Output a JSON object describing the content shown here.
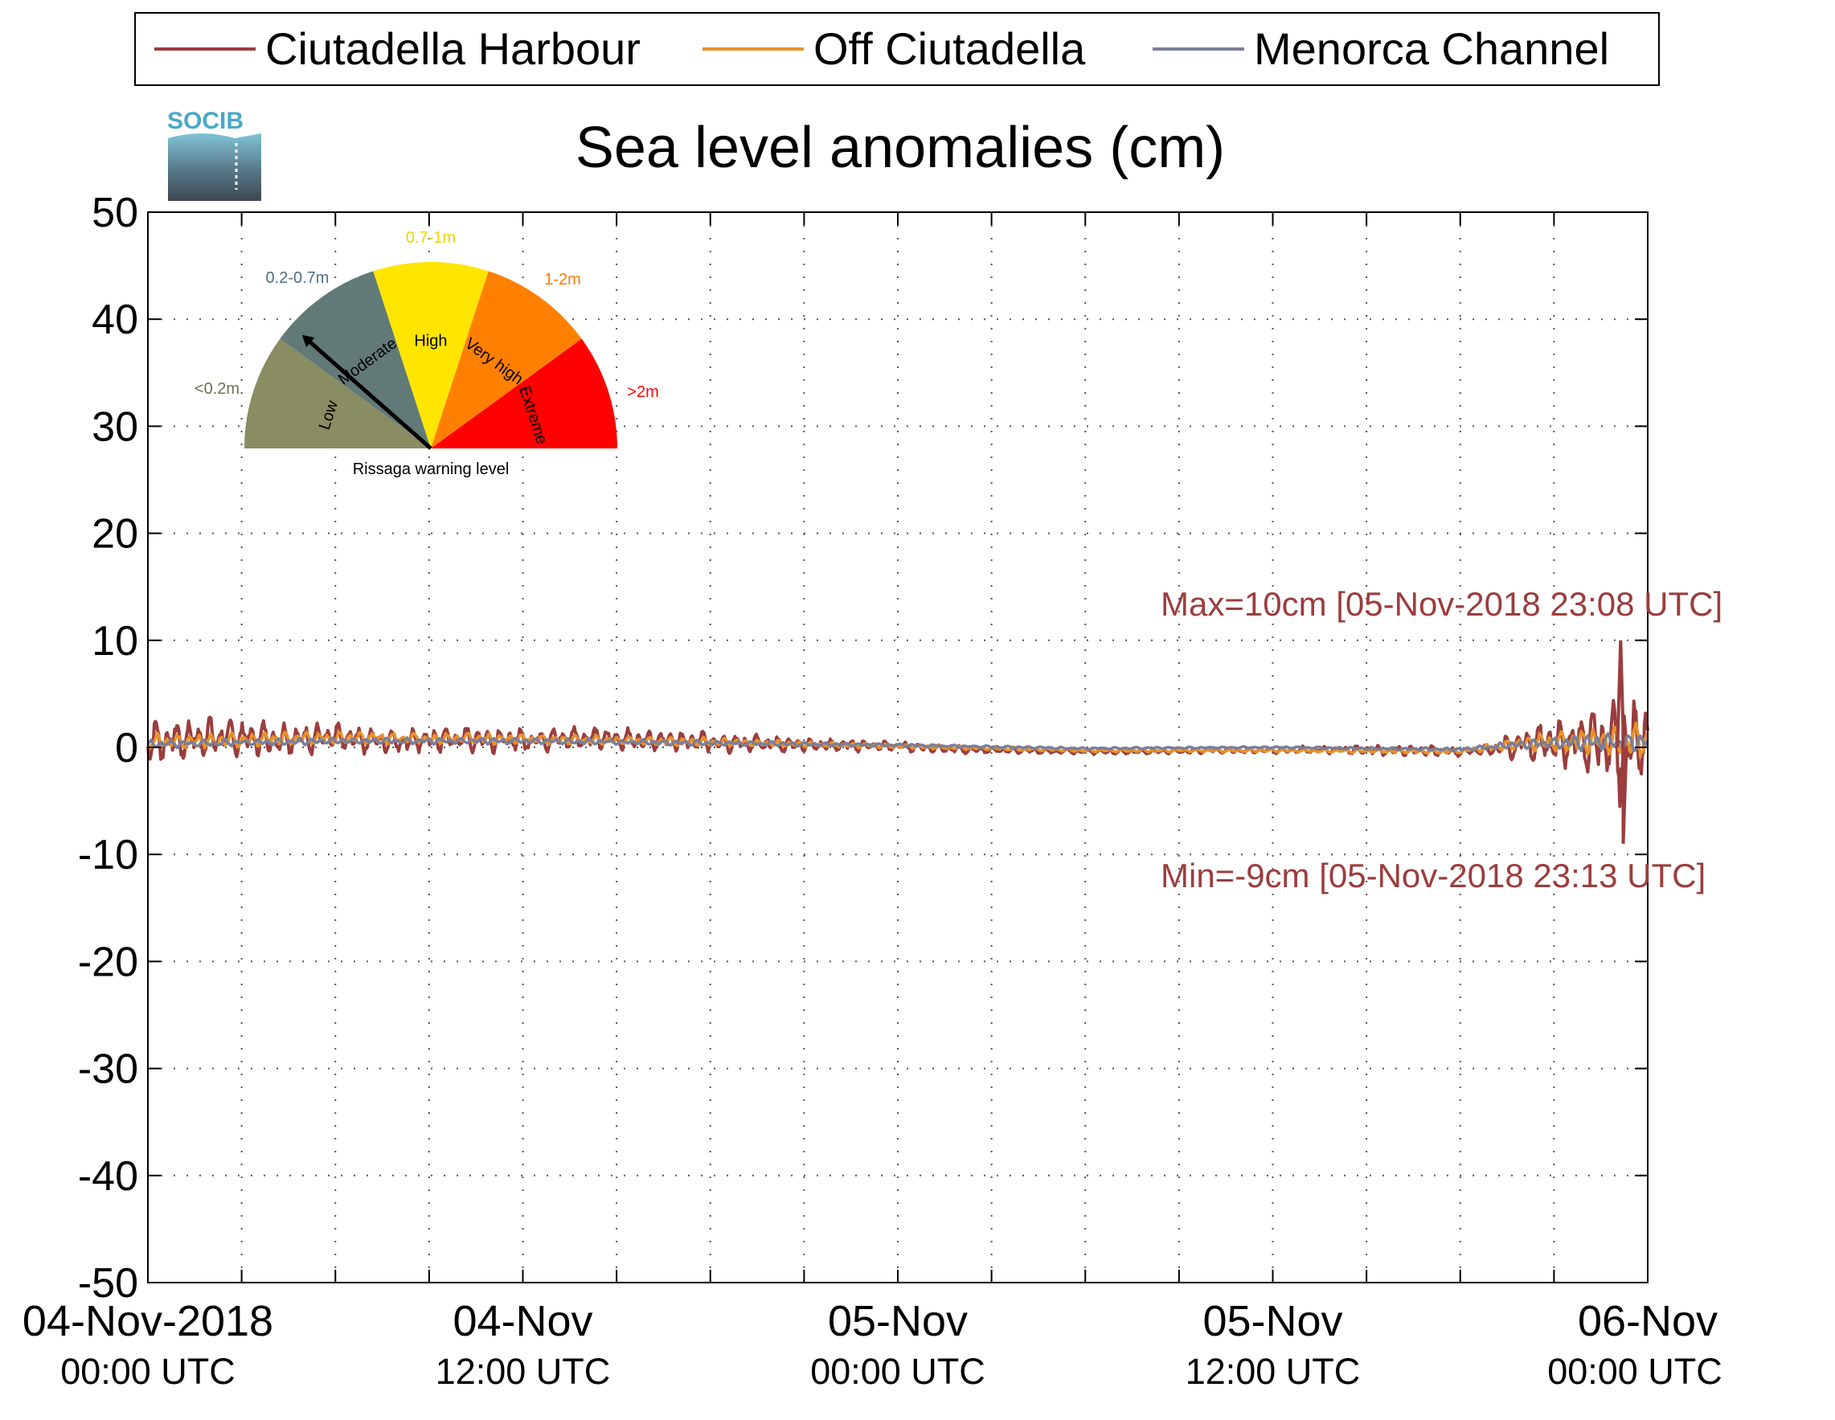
{
  "chart_data": {
    "type": "line",
    "title": "Sea level anomalies (cm)",
    "xlabel": "",
    "ylabel": "",
    "ylim": [
      -50,
      50
    ],
    "yticks": [
      50,
      40,
      30,
      20,
      10,
      0,
      -10,
      -20,
      -30,
      -40,
      -50
    ],
    "xlim": [
      "2018-11-04T00:00",
      "2018-11-06T00:00"
    ],
    "xticks": [
      {
        "t": "2018-11-04T00:00",
        "label": "04-Nov-2018",
        "sub": "00:00 UTC"
      },
      {
        "t": "2018-11-04T12:00",
        "label": "04-Nov",
        "sub": "12:00 UTC"
      },
      {
        "t": "2018-11-05T00:00",
        "label": "05-Nov",
        "sub": "00:00 UTC"
      },
      {
        "t": "2018-11-05T12:00",
        "label": "05-Nov",
        "sub": "12:00 UTC"
      },
      {
        "t": "2018-11-06T00:00",
        "label": "06-Nov",
        "sub": "00:00 UTC"
      }
    ],
    "minor_xtick_hours": 3,
    "grid": true,
    "legend_position": "top",
    "series": [
      {
        "name": "Ciutadella Harbour",
        "color": "#9b3d3d",
        "x": [
          "2018-11-04T00:00",
          "2018-11-04T02:00",
          "2018-11-04T04:00",
          "2018-11-04T06:00",
          "2018-11-04T08:00",
          "2018-11-04T10:00",
          "2018-11-04T12:00",
          "2018-11-04T14:00",
          "2018-11-04T16:00",
          "2018-11-04T18:00",
          "2018-11-04T20:00",
          "2018-11-04T22:00",
          "2018-11-05T00:00",
          "2018-11-05T02:00",
          "2018-11-05T04:00",
          "2018-11-05T06:00",
          "2018-11-05T08:00",
          "2018-11-05T10:00",
          "2018-11-05T12:00",
          "2018-11-05T14:00",
          "2018-11-05T16:00",
          "2018-11-05T18:00",
          "2018-11-05T19:00",
          "2018-11-05T20:00",
          "2018-11-05T21:00",
          "2018-11-05T22:00",
          "2018-11-05T23:00",
          "2018-11-05T23:08",
          "2018-11-05T23:13",
          "2018-11-06T00:00"
        ],
        "values": [
          0.5,
          1.0,
          0.8,
          0.9,
          0.6,
          0.8,
          0.7,
          0.9,
          0.7,
          0.5,
          0.3,
          0.2,
          0.1,
          -0.2,
          -0.3,
          -0.4,
          -0.4,
          -0.3,
          -0.3,
          -0.2,
          -0.3,
          -0.4,
          -0.2,
          0.3,
          0.5,
          0.6,
          0.8,
          10,
          -9,
          0.5
        ],
        "amplitude": [
          2.2,
          2.0,
          1.6,
          1.4,
          1.3,
          1.3,
          1.2,
          1.1,
          1.0,
          1.0,
          0.8,
          0.6,
          0.5,
          0.4,
          0.3,
          0.25,
          0.25,
          0.3,
          0.3,
          0.4,
          0.5,
          0.5,
          0.6,
          1.8,
          2.5,
          3.0,
          4.5,
          0,
          0,
          3.0
        ]
      },
      {
        "name": "Off Ciutadella",
        "color": "#e8922a",
        "x": [
          "2018-11-04T00:00",
          "2018-11-04T06:00",
          "2018-11-04T12:00",
          "2018-11-04T18:00",
          "2018-11-05T00:00",
          "2018-11-05T06:00",
          "2018-11-05T12:00",
          "2018-11-05T18:00",
          "2018-11-05T20:00",
          "2018-11-05T22:00",
          "2018-11-06T00:00"
        ],
        "values": [
          0.5,
          0.9,
          0.8,
          0.5,
          0.1,
          -0.3,
          -0.3,
          -0.4,
          0.4,
          0.6,
          0.6
        ],
        "amplitude": [
          0.8,
          0.6,
          0.5,
          0.4,
          0.2,
          0.15,
          0.15,
          0.2,
          0.7,
          1.3,
          1.8
        ]
      },
      {
        "name": "Menorca Channel",
        "color": "#7a7f9a",
        "x": [
          "2018-11-04T00:00",
          "2018-11-04T06:00",
          "2018-11-04T12:00",
          "2018-11-04T18:00",
          "2018-11-05T00:00",
          "2018-11-05T06:00",
          "2018-11-05T12:00",
          "2018-11-05T18:00",
          "2018-11-05T20:00",
          "2018-11-05T22:00",
          "2018-11-06T00:00"
        ],
        "values": [
          0.3,
          0.6,
          0.6,
          0.4,
          0.2,
          -0.1,
          0.0,
          -0.2,
          0.3,
          0.5,
          0.5
        ],
        "amplitude": [
          0.4,
          0.3,
          0.3,
          0.25,
          0.15,
          0.1,
          0.1,
          0.15,
          0.4,
          0.8,
          1.0
        ]
      }
    ],
    "annotations": {
      "max": "Max=10cm [05-Nov-2018 23:08 UTC]",
      "min": "Min=-9cm [05-Nov-2018 23:13 UTC]"
    }
  },
  "logo": {
    "text": "SOCIB"
  },
  "gauge": {
    "caption": "Rissaga warning level",
    "pointer_level": "Moderate",
    "segments": [
      {
        "label": "Low",
        "range": "<0.2m",
        "color": "#8a8c62",
        "range_color": "#6e7050"
      },
      {
        "label": "Moderate",
        "range": "0.2-0.7m",
        "color": "#617a78",
        "range_color": "#4c6e80"
      },
      {
        "label": "High",
        "range": "0.7-1m",
        "color": "#ffe500",
        "range_color": "#f2d300"
      },
      {
        "label": "Very high",
        "range": "1-2m",
        "color": "#ff8000",
        "range_color": "#ff7a00"
      },
      {
        "label": "Extreme",
        "range": ">2m",
        "color": "#ff0000",
        "range_color": "#ff0000"
      }
    ]
  }
}
